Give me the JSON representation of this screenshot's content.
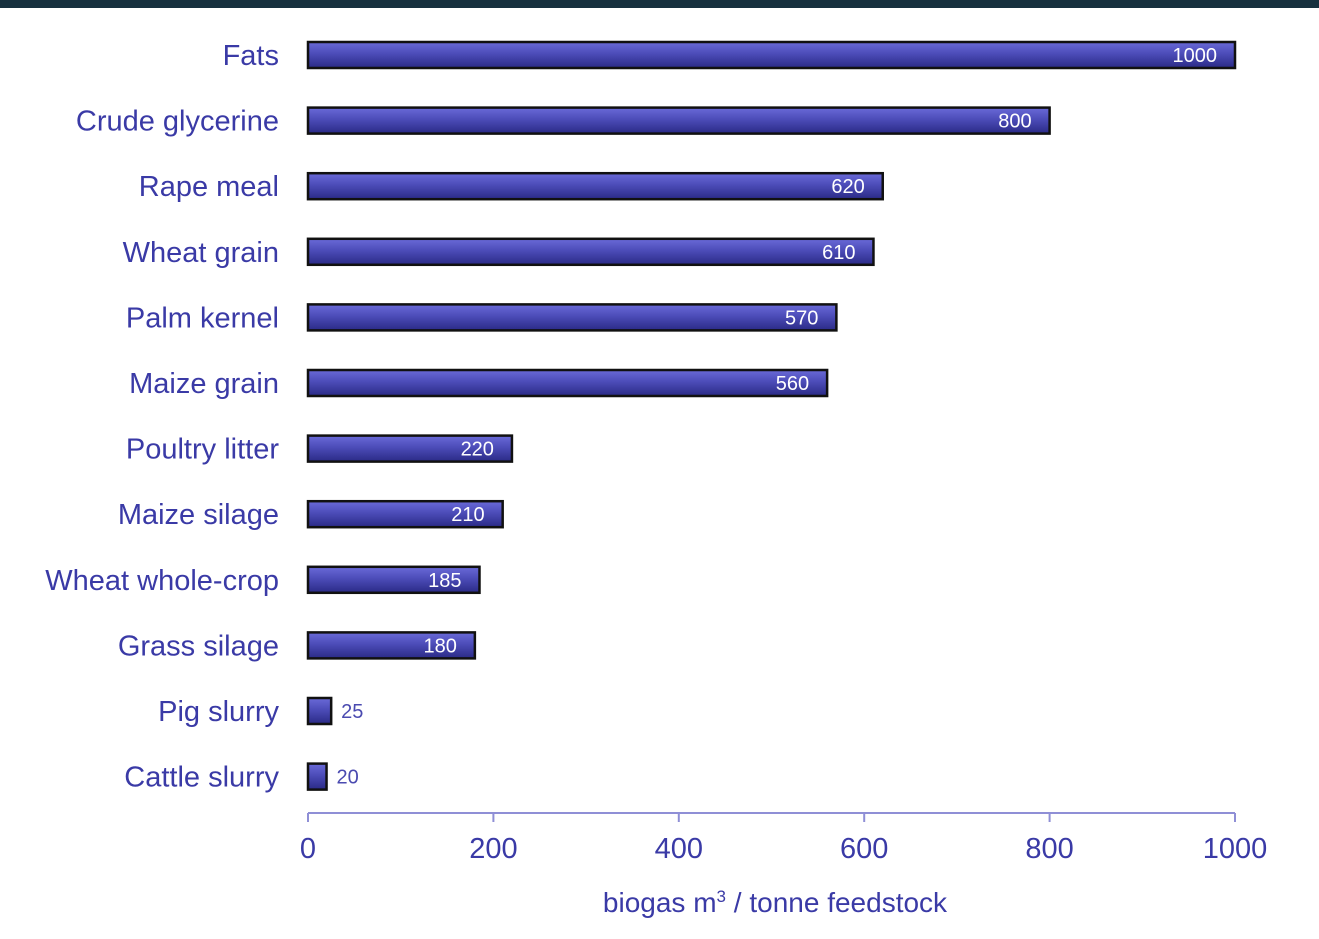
{
  "chart_data": {
    "type": "bar",
    "orientation": "horizontal",
    "categories": [
      "Fats",
      "Crude glycerine",
      "Rape meal",
      "Wheat grain",
      "Palm kernel",
      "Maize grain",
      "Poultry litter",
      "Maize silage",
      "Wheat whole-crop",
      "Grass silage",
      "Pig slurry",
      "Cattle slurry"
    ],
    "values": [
      1000,
      800,
      620,
      610,
      570,
      560,
      220,
      210,
      185,
      180,
      25,
      20
    ],
    "value_labels": [
      "1000",
      "800",
      "620",
      "610",
      "570",
      "560",
      "220",
      "210",
      "185",
      "180",
      "25",
      "20"
    ],
    "xlim": [
      0,
      1000
    ],
    "xticks": [
      0,
      200,
      400,
      600,
      800,
      1000
    ],
    "xtick_labels": [
      "0",
      "200",
      "400",
      "600",
      "800",
      "1000"
    ],
    "xlabel": "biogas m",
    "xlabel_sup": "3",
    "xlabel_rest": " / tonne feedstock",
    "title": "",
    "grid": false,
    "colors": {
      "bar_fill_top": "#6a6ad8",
      "bar_fill_bottom": "#2a2a86",
      "bar_stroke": "#111111",
      "text": "#3a3aa6",
      "axis": "#8f8fd6",
      "top_band": "#17313f"
    }
  }
}
